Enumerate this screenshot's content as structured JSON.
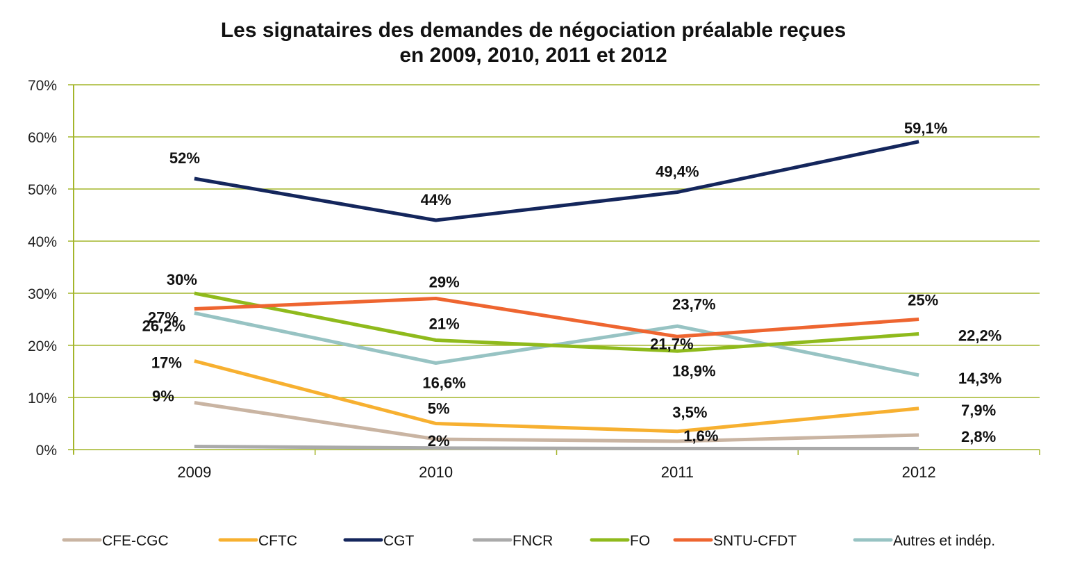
{
  "chart_data": {
    "type": "line",
    "title": [
      "Les signataires des demandes de négociation préalable reçues",
      "en 2009, 2010, 2011 et 2012"
    ],
    "xlabel": "",
    "ylabel": "",
    "categories": [
      "2009",
      "2010",
      "2011",
      "2012"
    ],
    "ylim": [
      0,
      70
    ],
    "yticks": [
      0,
      10,
      20,
      30,
      40,
      50,
      60,
      70
    ],
    "ytick_labels": [
      "0%",
      "10%",
      "20%",
      "30%",
      "40%",
      "50%",
      "60%",
      "70%"
    ],
    "grid": true,
    "legend_position": "bottom",
    "axis_color": "#a4b52a",
    "series": [
      {
        "name": "CFE-CGC",
        "color": "#c9b4a2",
        "values": [
          9,
          2,
          1.6,
          2.8
        ],
        "labels": [
          "9%",
          "2%",
          "1,6%",
          "2,8%"
        ]
      },
      {
        "name": "CFTC",
        "color": "#f7b030",
        "values": [
          17,
          5,
          3.5,
          7.9
        ],
        "labels": [
          "17%",
          "5%",
          "3,5%",
          "7,9%"
        ]
      },
      {
        "name": "CGT",
        "color": "#14265c",
        "values": [
          52,
          44,
          49.4,
          59.1
        ],
        "labels": [
          "52%",
          "44%",
          "49,4%",
          "59,1%"
        ]
      },
      {
        "name": "FNCR",
        "color": "#aaaaaa",
        "values": [
          0.6,
          0.3,
          0.2,
          0.2
        ],
        "labels": [
          "",
          "",
          "",
          ""
        ]
      },
      {
        "name": "FO",
        "color": "#8fba1c",
        "values": [
          30,
          21,
          18.9,
          22.2
        ],
        "labels": [
          "30%",
          "21%",
          "18,9%",
          "22,2%"
        ]
      },
      {
        "name": "SNTU-CFDT",
        "color": "#ee6530",
        "values": [
          27,
          29,
          21.7,
          25
        ],
        "labels": [
          "27%",
          "29%",
          "21,7%",
          "25%"
        ]
      },
      {
        "name": "Autres et indép.",
        "color": "#97c3c3",
        "values": [
          26.2,
          16.6,
          23.7,
          14.3
        ],
        "labels": [
          "26,2%",
          "16,6%",
          "23,7%",
          "14,3%"
        ]
      }
    ]
  }
}
